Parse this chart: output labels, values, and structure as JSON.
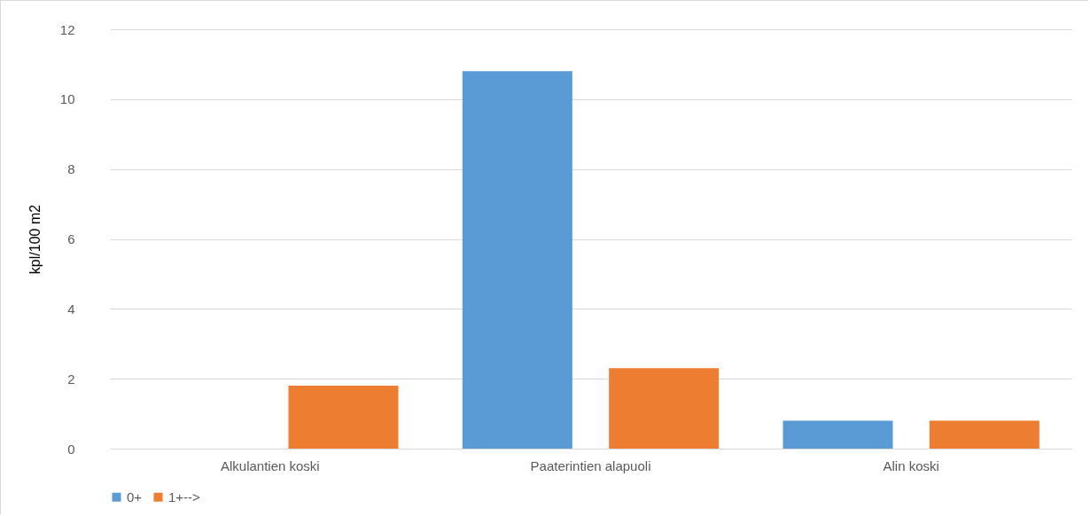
{
  "chart_data": {
    "type": "bar",
    "ylabel": "kpl/100 m2",
    "categories": [
      "Alkulantien koski",
      "Paaterintien alapuoli",
      "Alin koski"
    ],
    "series": [
      {
        "name": "0+",
        "color": "#5b9bd5",
        "values": [
          0,
          10.8,
          0.8
        ]
      },
      {
        "name": "1+-->",
        "color": "#ed7d31",
        "values": [
          1.8,
          2.3,
          0.8
        ]
      }
    ],
    "ylim": [
      0,
      12
    ],
    "yticks": [
      0,
      2,
      4,
      6,
      8,
      10,
      12
    ],
    "grid": "y",
    "legend": "bottom"
  }
}
